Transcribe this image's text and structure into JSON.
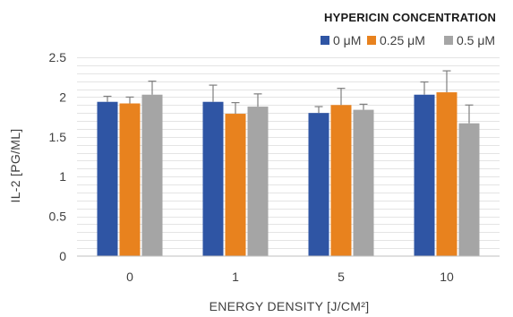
{
  "chart_data": {
    "type": "bar",
    "title": "",
    "xlabel": "ENERGY DENSITY [J/CM²]",
    "ylabel": "IL-2 [PG/ML]",
    "legend_title": "HYPERICIN CONCENTRATION",
    "legend_position": "top-right",
    "categories": [
      "0",
      "1",
      "5",
      "10"
    ],
    "y_ticks": [
      "0",
      "0.5",
      "1",
      "1.5",
      "2",
      "2.5"
    ],
    "ylim": [
      0,
      2.5
    ],
    "grid": true,
    "series": [
      {
        "name": "0 μM",
        "color": "#2f55a4",
        "values": [
          1.94,
          1.94,
          1.8,
          2.03
        ],
        "errors": [
          0.07,
          0.21,
          0.08,
          0.16
        ]
      },
      {
        "name": "0.25 μM",
        "color": "#e8821e",
        "values": [
          1.92,
          1.79,
          1.9,
          2.06
        ],
        "errors": [
          0.08,
          0.14,
          0.21,
          0.27
        ]
      },
      {
        "name": "0.5 μM",
        "color": "#a5a5a5",
        "values": [
          2.03,
          1.88,
          1.84,
          1.67
        ],
        "errors": [
          0.17,
          0.16,
          0.07,
          0.23
        ]
      }
    ]
  }
}
